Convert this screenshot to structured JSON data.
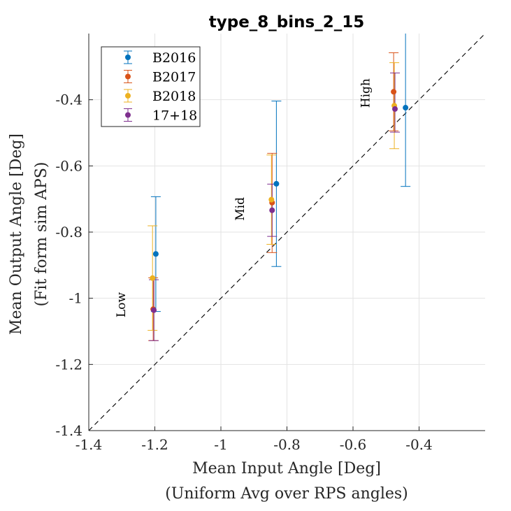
{
  "chart_data": {
    "type": "scatter",
    "title": "type_8_bins_2_15",
    "xlabel": [
      "Mean Input Angle [Deg]",
      "(Uniform Avg over RPS angles)"
    ],
    "ylabel": [
      "Mean Output Angle [Deg]",
      "(Fit form sim APS)"
    ],
    "xlim": [
      -1.4,
      -0.2
    ],
    "ylim": [
      -1.4,
      -0.2
    ],
    "x_ticks": [
      -1.4,
      -1.2,
      -1,
      -0.8,
      -0.6,
      -0.4
    ],
    "x_tick_labels": [
      "-1.4",
      "-1.2",
      "-1",
      "-0.8",
      "-0.6",
      "-0.4"
    ],
    "y_ticks": [
      -1.4,
      -1.2,
      -1,
      -0.8,
      -0.6,
      -0.4
    ],
    "y_tick_labels": [
      "-1.4",
      "-1.2",
      "-1",
      "-0.8",
      "-0.6",
      "-0.4"
    ],
    "grid": true,
    "legend_position": "top-left",
    "reference_line": {
      "style": "dashed",
      "color": "#000000",
      "from": [
        -1.4,
        -1.4
      ],
      "to": [
        -0.2,
        -0.2
      ]
    },
    "annotations": [
      {
        "text": "Low",
        "x": -1.29,
        "y": -1.02,
        "rotation": -90
      },
      {
        "text": "Mid",
        "x": -0.93,
        "y": -0.73,
        "rotation": -90
      },
      {
        "text": "High",
        "x": -0.55,
        "y": -0.38,
        "rotation": -90
      }
    ],
    "series": [
      {
        "name": "B2016",
        "color": "#0072BD",
        "points": [
          {
            "x": -1.197,
            "y": -0.866,
            "lower": -1.04,
            "upper": -0.693
          },
          {
            "x": -0.832,
            "y": -0.654,
            "lower": -0.904,
            "upper": -0.404
          },
          {
            "x": -0.441,
            "y": -0.424,
            "lower": -0.662,
            "upper": -0.187
          }
        ]
      },
      {
        "name": "B2017",
        "color": "#D95319",
        "points": [
          {
            "x": -1.205,
            "y": -1.033,
            "lower": -1.128,
            "upper": -0.938
          },
          {
            "x": -0.845,
            "y": -0.711,
            "lower": -0.862,
            "upper": -0.562
          },
          {
            "x": -0.477,
            "y": -0.376,
            "lower": -0.494,
            "upper": -0.258
          }
        ]
      },
      {
        "name": "B2018",
        "color": "#EDB120",
        "points": [
          {
            "x": -1.207,
            "y": -0.939,
            "lower": -1.097,
            "upper": -0.781
          },
          {
            "x": -0.847,
            "y": -0.702,
            "lower": -0.837,
            "upper": -0.567
          },
          {
            "x": -0.475,
            "y": -0.418,
            "lower": -0.548,
            "upper": -0.288
          }
        ]
      },
      {
        "name": "17+18",
        "color": "#7E2F8E",
        "points": [
          {
            "x": -1.203,
            "y": -1.036,
            "lower": -1.128,
            "upper": -0.944
          },
          {
            "x": -0.845,
            "y": -0.734,
            "lower": -0.813,
            "upper": -0.655
          },
          {
            "x": -0.473,
            "y": -0.428,
            "lower": -0.498,
            "upper": -0.319
          }
        ]
      }
    ]
  }
}
